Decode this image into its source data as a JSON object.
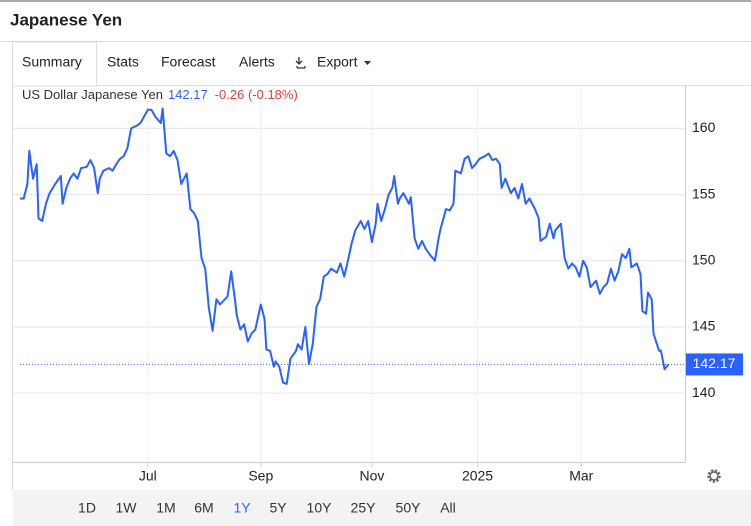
{
  "header": {
    "title": "Japanese Yen"
  },
  "tabs": [
    "Summary",
    "Stats",
    "Forecast",
    "Alerts",
    "Export"
  ],
  "ranges": [
    "1D",
    "1W",
    "1M",
    "6M",
    "1Y",
    "5Y",
    "10Y",
    "25Y",
    "50Y",
    "All"
  ],
  "active_range": 4,
  "chart_data": {
    "type": "line",
    "change": "-0.26 (-0.18%)",
    "x": [
      0,
      2,
      4,
      5,
      7,
      9,
      10,
      12,
      14,
      16,
      19,
      22,
      23,
      25,
      27,
      29,
      31,
      33,
      36,
      38,
      40,
      42,
      43,
      45,
      48,
      50,
      52,
      54,
      56,
      58,
      60,
      63,
      65,
      67,
      69,
      71,
      73,
      76,
      77,
      79,
      81,
      83,
      85,
      87,
      90,
      92,
      94,
      96,
      98,
      100,
      102,
      104,
      106,
      108,
      110,
      112,
      114,
      116,
      117,
      119,
      121,
      123,
      125,
      127,
      130,
      132,
      133,
      135,
      137,
      138,
      140,
      142,
      144,
      146,
      149,
      150,
      152,
      154,
      156,
      158,
      160,
      162,
      164,
      166,
      168,
      171,
      173,
      175,
      177,
      179,
      181,
      184,
      186,
      188,
      190,
      192,
      193,
      195,
      197,
      199,
      201,
      202,
      204,
      205,
      207,
      210,
      211,
      213,
      215,
      217,
      219,
      221,
      224,
      226,
      227,
      230,
      232,
      234,
      235,
      238,
      240,
      242,
      244,
      246,
      248,
      251,
      253,
      255,
      257,
      259,
      260,
      262,
      265,
      267,
      269,
      271,
      273,
      275,
      278,
      280,
      281,
      284,
      286,
      288,
      289,
      292,
      294,
      296,
      298,
      300,
      302,
      304,
      306,
      308,
      311,
      313,
      315,
      317,
      319,
      321,
      323,
      325,
      327,
      329,
      330,
      333,
      335,
      336,
      338,
      339,
      341,
      342,
      345,
      346,
      348,
      350
    ],
    "series": [
      {
        "name": "US Dollar Japanese Yen",
        "color": "#2962ff",
        "values": [
          154.7,
          154.7,
          155.8,
          158.3,
          156.2,
          157.3,
          153.2,
          153.0,
          154.3,
          155.1,
          155.8,
          156.4,
          154.3,
          155.5,
          156.2,
          156.6,
          156.2,
          157.0,
          157.1,
          157.6,
          157.0,
          155.1,
          156.2,
          156.8,
          157.0,
          156.8,
          157.3,
          157.7,
          157.9,
          158.5,
          160.0,
          160.2,
          160.4,
          160.9,
          161.4,
          161.4,
          160.9,
          160.4,
          161.5,
          158.1,
          157.9,
          158.3,
          157.6,
          155.8,
          156.6,
          153.9,
          153.6,
          153.0,
          150.2,
          149.4,
          146.4,
          144.7,
          147.1,
          146.7,
          147.0,
          147.3,
          149.2,
          147.1,
          145.9,
          144.8,
          145.2,
          143.9,
          144.5,
          144.8,
          146.7,
          145.6,
          143.3,
          143.2,
          142.0,
          142.4,
          142.0,
          140.8,
          140.7,
          142.6,
          143.2,
          143.7,
          143.3,
          145.0,
          142.2,
          143.7,
          146.5,
          147.1,
          148.8,
          149.0,
          149.4,
          149.1,
          149.8,
          148.8,
          150.0,
          151.3,
          152.3,
          153.0,
          152.4,
          153.0,
          151.4,
          152.8,
          154.3,
          153.0,
          153.9,
          155.0,
          155.5,
          156.4,
          154.3,
          154.7,
          155.1,
          154.3,
          154.8,
          151.7,
          150.9,
          151.5,
          150.9,
          150.5,
          150.0,
          151.7,
          152.4,
          153.9,
          153.8,
          154.3,
          156.8,
          156.6,
          157.7,
          157.9,
          157.0,
          157.3,
          157.7,
          157.9,
          158.1,
          157.6,
          157.7,
          157.3,
          155.5,
          156.2,
          155.1,
          155.5,
          154.7,
          155.8,
          154.3,
          154.7,
          153.9,
          153.2,
          151.5,
          151.8,
          152.8,
          151.7,
          152.3,
          152.8,
          150.2,
          149.4,
          149.8,
          149.5,
          148.8,
          150.0,
          149.5,
          148.0,
          148.5,
          147.5,
          148.0,
          148.3,
          149.4,
          148.5,
          149.2,
          150.5,
          150.2,
          150.9,
          149.5,
          149.8,
          149.0,
          146.2,
          146.0,
          147.6,
          147.1,
          144.5,
          143.2,
          143.2,
          141.8,
          142.17
        ]
      }
    ],
    "xlim": [
      0,
      359
    ],
    "xticks": [
      {
        "value": 69,
        "label": "Jul"
      },
      {
        "value": 130,
        "label": "Sep"
      },
      {
        "value": 190,
        "label": "Nov"
      },
      {
        "value": 247,
        "label": "2025"
      },
      {
        "value": 303,
        "label": "Mar"
      }
    ],
    "ylim": [
      134.8,
      163.2
    ],
    "yticks": [
      140,
      145,
      150,
      155,
      160
    ],
    "grid": true
  }
}
